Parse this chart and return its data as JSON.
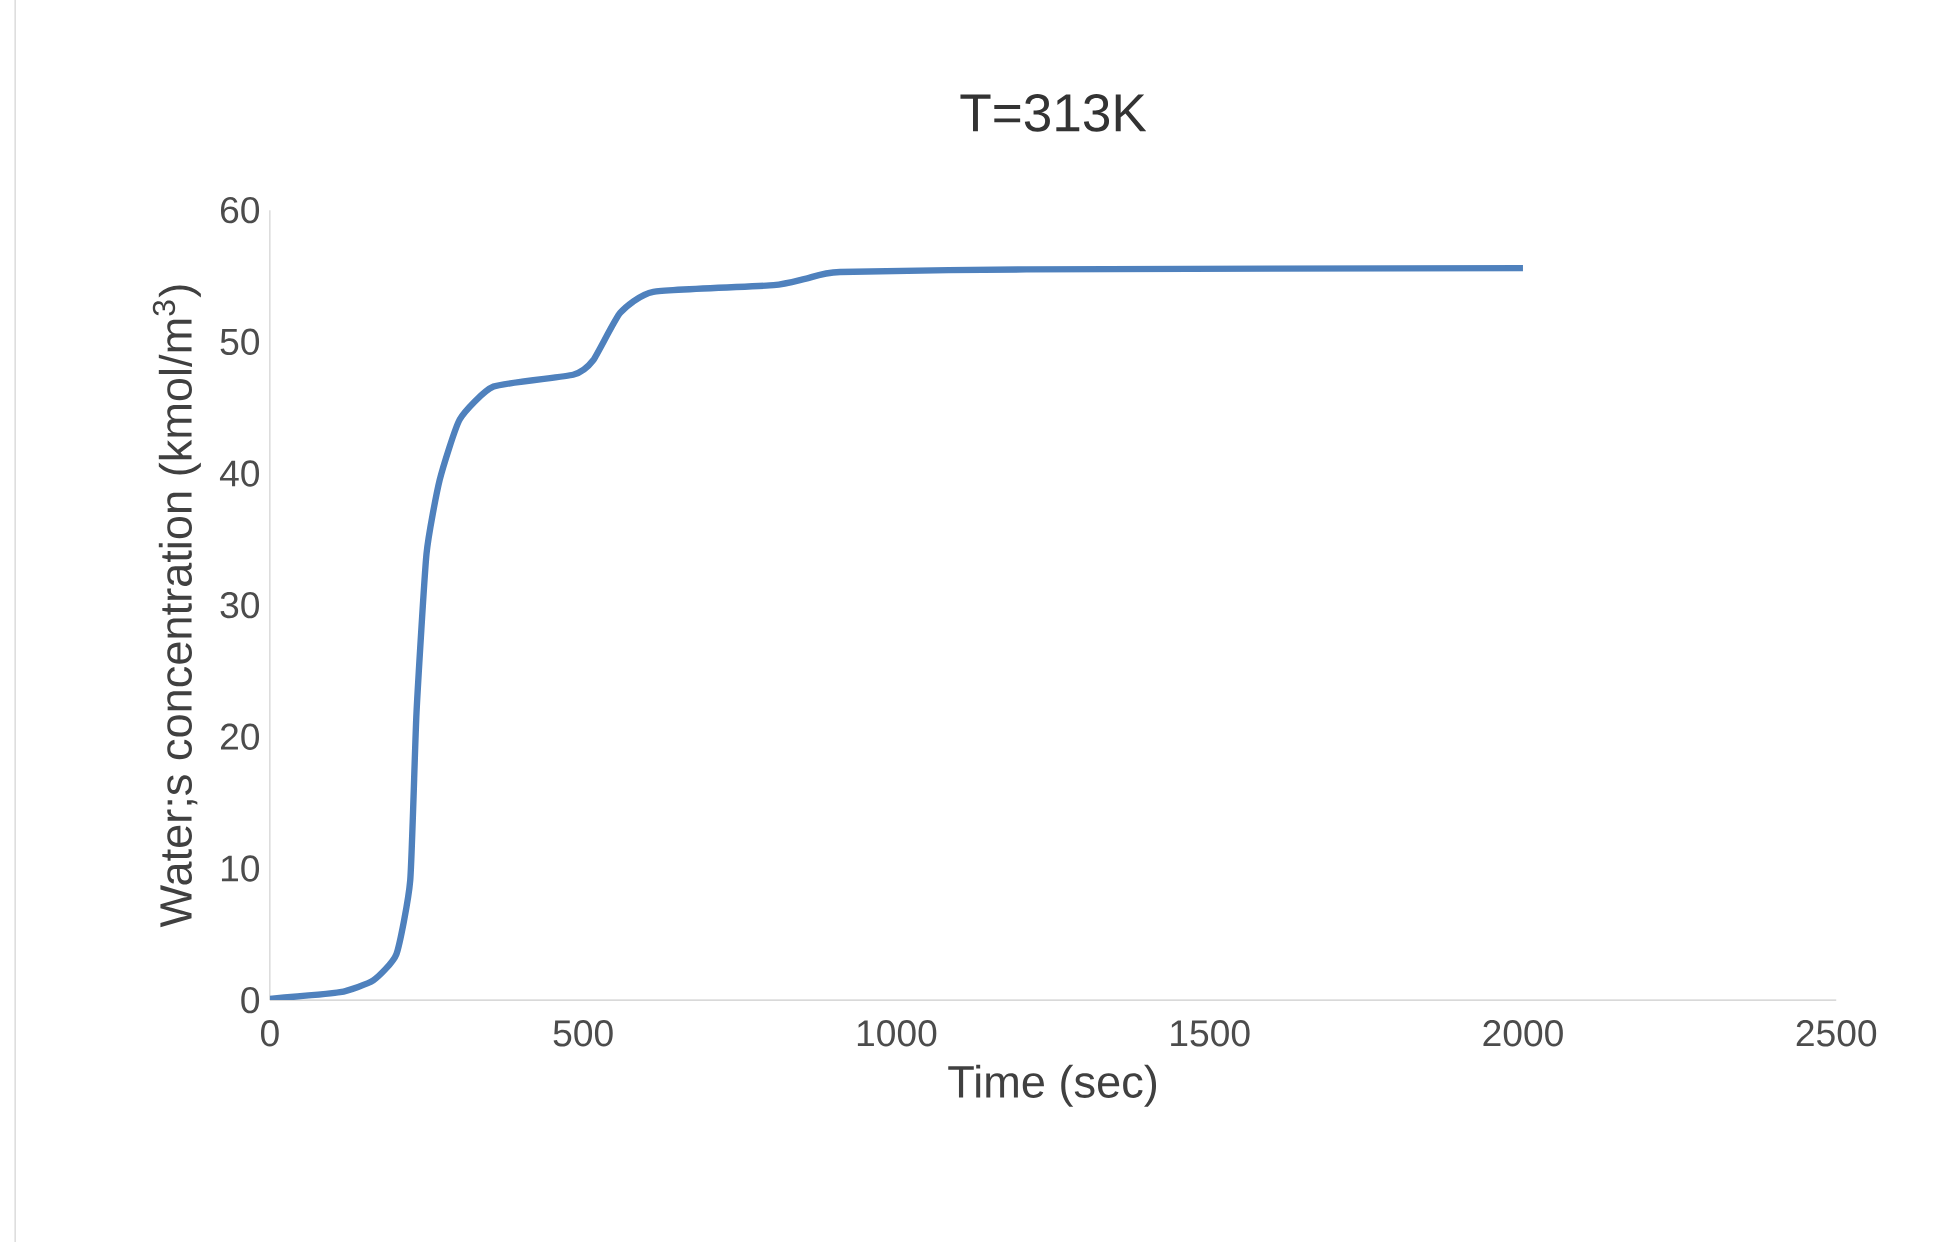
{
  "chart_data": {
    "type": "line",
    "title": "T=313K",
    "xlabel": "Time (sec)",
    "ylabel": "Water;s concentration (kmol/m$^{3}$)",
    "series": [
      {
        "color": "#4f81bd",
        "x": [
          0,
          112,
          165,
          202,
          224,
          234,
          250,
          271,
          303,
          357,
          484,
          516,
          559,
          612,
          804,
          856,
          910,
          1207,
          2000
        ],
        "values": [
          0.1,
          0.6,
          1.5,
          3.5,
          9.1,
          21.8,
          33.9,
          39.5,
          44.1,
          46.6,
          47.5,
          48.6,
          52.2,
          53.8,
          54.3,
          54.8,
          55.3,
          55.5,
          55.6
        ]
      }
    ],
    "xlim": [
      0,
      2500
    ],
    "xticks": [
      0,
      500,
      1000,
      1500,
      2000,
      2500
    ],
    "ylim": [
      0,
      60
    ],
    "yticks": [
      0,
      10,
      20,
      30,
      40,
      50,
      60
    ],
    "grid": false,
    "marker": "none",
    "line_style": "solid"
  }
}
